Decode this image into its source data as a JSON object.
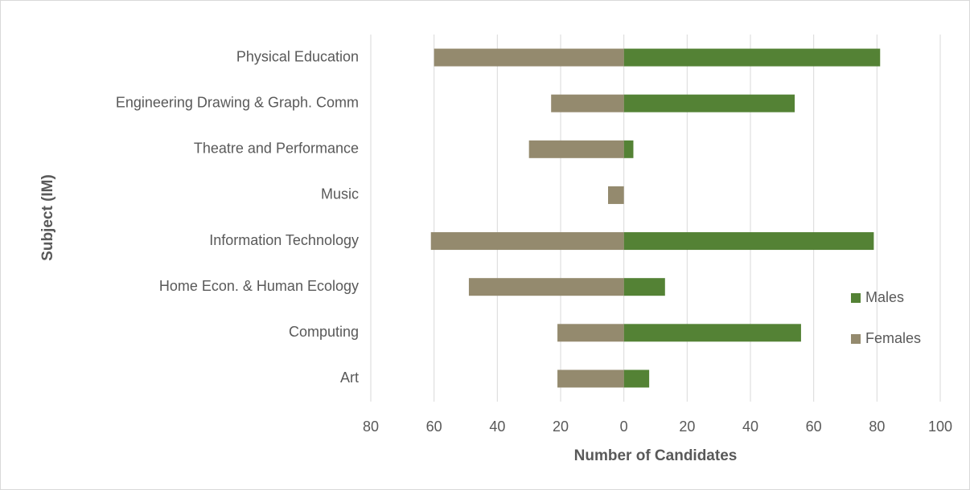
{
  "chart_data": {
    "type": "bar",
    "orientation": "horizontal",
    "xlabel": "Number of Candidates",
    "ylabel": "Subject (IM)",
    "categories": [
      "Physical Education",
      "Engineering Drawing & Graph. Comm",
      "Theatre and Performance",
      "Music",
      "Information Technology",
      "Home Econ. & Human Ecology",
      "Computing",
      "Art"
    ],
    "series": [
      {
        "name": "Males",
        "color": "#548235",
        "values": [
          81,
          54,
          3,
          0,
          79,
          13,
          56,
          8
        ]
      },
      {
        "name": "Females",
        "color": "#948a6e",
        "values": [
          -60,
          -23,
          -30,
          -5,
          -61,
          -49,
          -21,
          -21
        ]
      }
    ],
    "xlim": [
      -80,
      100
    ],
    "xticks": [
      {
        "value": -80,
        "label": "80"
      },
      {
        "value": -60,
        "label": "60"
      },
      {
        "value": -40,
        "label": "40"
      },
      {
        "value": -20,
        "label": "20"
      },
      0,
      20,
      40,
      60,
      80,
      100
    ],
    "grid": true,
    "legend": "right"
  }
}
